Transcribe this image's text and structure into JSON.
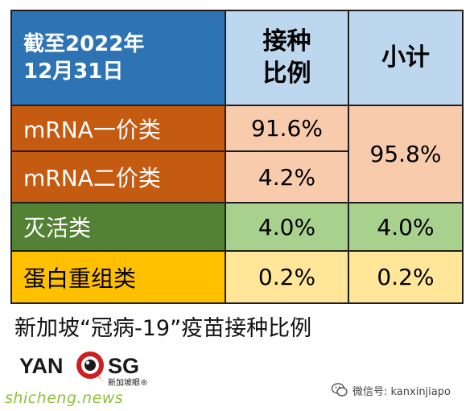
{
  "table": {
    "header": {
      "title_line1": "截至2022年",
      "title_line2": "12月31日",
      "col1_line1": "接种",
      "col1_line2": "比例",
      "col2": "小计"
    },
    "rows": [
      {
        "label": "mRNA一价类",
        "ratio": "91.6%"
      },
      {
        "label": "mRNA二价类",
        "ratio": "4.2%"
      },
      {
        "label": "灭活类",
        "ratio": "4.0%",
        "subtotal": "4.0%"
      },
      {
        "label": "蛋白重组类",
        "ratio": "0.2%",
        "subtotal": "0.2%"
      }
    ],
    "mrna_subtotal": "95.8%"
  },
  "caption": "新加坡“冠病-19”疫苗接种比例",
  "logo": {
    "text_left": "YAN",
    "text_right": "SG",
    "sub": "新加坡眼®"
  },
  "wechat": {
    "icon": "wechat-icon",
    "text": "微信号: kanxinjiapo"
  },
  "watermark": "shicheng.news",
  "colors": {
    "header_blue": "#2e74b5",
    "header_light": "#bdd7ee",
    "orange": "#c55a11",
    "orange_light": "#f8cbad",
    "green": "#548235",
    "green_light": "#a9d18e",
    "yellow": "#ffc000",
    "yellow_light": "#ffe699"
  }
}
